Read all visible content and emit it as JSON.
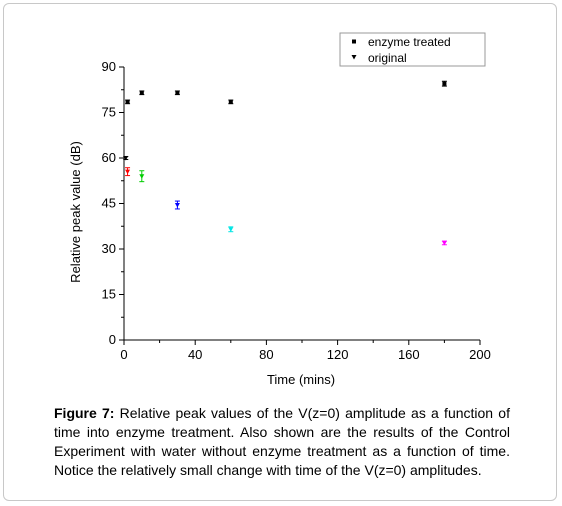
{
  "chart_data": {
    "type": "scatter",
    "xlabel": "Time (mins)",
    "ylabel": "Relative peak value (dB)",
    "xlim": [
      0,
      200
    ],
    "ylim": [
      0,
      90
    ],
    "xticks": [
      0,
      40,
      80,
      120,
      160,
      200
    ],
    "yticks": [
      0,
      15,
      30,
      45,
      60,
      75,
      90
    ],
    "grid": false,
    "legend_position": "top-right",
    "series": [
      {
        "name": "enzyme treated",
        "marker": "square",
        "points": [
          {
            "x": 2,
            "y": 78.5,
            "err": 0.6,
            "color": "#000000"
          },
          {
            "x": 10,
            "y": 81.5,
            "err": 0.6,
            "color": "#000000"
          },
          {
            "x": 30,
            "y": 81.5,
            "err": 0.6,
            "color": "#000000"
          },
          {
            "x": 60,
            "y": 78.5,
            "err": 0.6,
            "color": "#000000"
          },
          {
            "x": 180,
            "y": 84.5,
            "err": 0.8,
            "color": "#000000"
          }
        ]
      },
      {
        "name": "original",
        "marker": "triangle-down",
        "points": [
          {
            "x": 1,
            "y": 60,
            "err": 0.5,
            "color": "#000000"
          },
          {
            "x": 2,
            "y": 55.5,
            "err": 1.3,
            "color": "#ff0000"
          },
          {
            "x": 10,
            "y": 54,
            "err": 1.8,
            "color": "#00cc00"
          },
          {
            "x": 30,
            "y": 44.5,
            "err": 1.3,
            "color": "#0000ff"
          },
          {
            "x": 60,
            "y": 36.5,
            "err": 0.8,
            "color": "#00e5e5"
          },
          {
            "x": 180,
            "y": 32,
            "err": 0.6,
            "color": "#ff00ff"
          }
        ]
      }
    ]
  },
  "caption": {
    "label": "Figure 7:",
    "text": " Relative peak values of the V(z=0) amplitude as a function of time into enzyme treatment. Also shown are the results of the Control Experiment with water without enzyme treatment as a function of time.  Notice the relatively small change with time of the V(z=0) amplitudes."
  }
}
